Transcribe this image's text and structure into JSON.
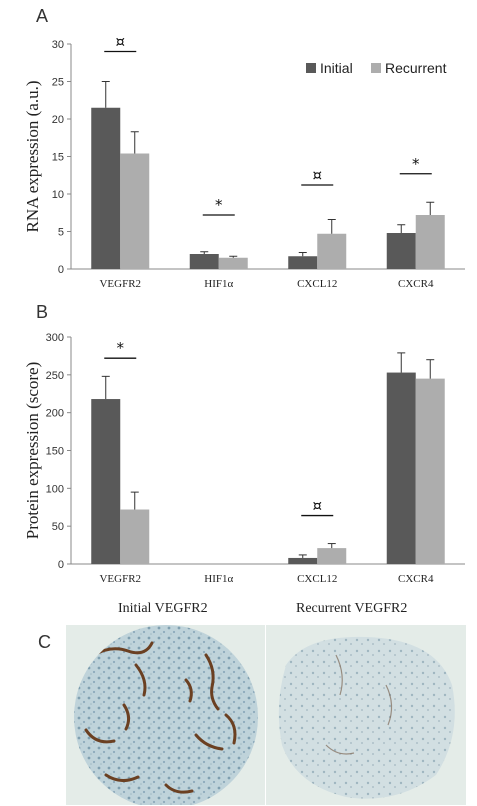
{
  "panels": {
    "a": "A",
    "b": "B",
    "c": "C"
  },
  "colors": {
    "initial": "#595959",
    "recurrent": "#adadad",
    "error": "#333333"
  },
  "chart_data": [
    {
      "type": "bar",
      "ylabel": "RNA expression (a.u.)",
      "ylim": [
        0,
        30
      ],
      "yticks": [
        "0",
        "5",
        "10",
        "15",
        "20",
        "25",
        "30"
      ],
      "categories": [
        "VEGFR2",
        "HIF1α",
        "CXCL12",
        "CXCR4"
      ],
      "series": [
        {
          "name": "Initial",
          "values": [
            21.5,
            2.0,
            1.7,
            4.8
          ],
          "errors": [
            3.5,
            0.3,
            0.5,
            1.1
          ]
        },
        {
          "name": "Recurrent",
          "values": [
            15.4,
            1.5,
            4.7,
            7.2
          ],
          "errors": [
            2.9,
            0.2,
            1.9,
            1.7
          ]
        }
      ],
      "legend": "top-right",
      "annotations": [
        {
          "category": "VEGFR2",
          "symbol": "¤",
          "y": 29
        },
        {
          "category": "HIF1α",
          "symbol": "*",
          "y": 7.2
        },
        {
          "category": "CXCL12",
          "symbol": "¤",
          "y": 11.2
        },
        {
          "category": "CXCR4",
          "symbol": "*",
          "y": 12.7
        }
      ]
    },
    {
      "type": "bar",
      "ylabel": "Protein expression (score)",
      "ylim": [
        0,
        300
      ],
      "yticks": [
        "0",
        "50",
        "100",
        "150",
        "200",
        "250",
        "300"
      ],
      "categories": [
        "VEGFR2",
        "HIF1α",
        "CXCL12",
        "CXCR4"
      ],
      "series": [
        {
          "name": "Initial",
          "values": [
            218,
            0,
            8,
            253
          ],
          "errors": [
            30,
            0,
            4,
            26
          ]
        },
        {
          "name": "Recurrent",
          "values": [
            72,
            0,
            21,
            245
          ],
          "errors": [
            23,
            0,
            6,
            25
          ]
        }
      ],
      "annotations": [
        {
          "category": "VEGFR2",
          "symbol": "*",
          "y": 272
        },
        {
          "category": "CXCL12",
          "symbol": "¤",
          "y": 64
        }
      ]
    }
  ],
  "images": {
    "left_caption": "Initial VEGFR2",
    "right_caption": "Recurrent VEGFR2"
  }
}
